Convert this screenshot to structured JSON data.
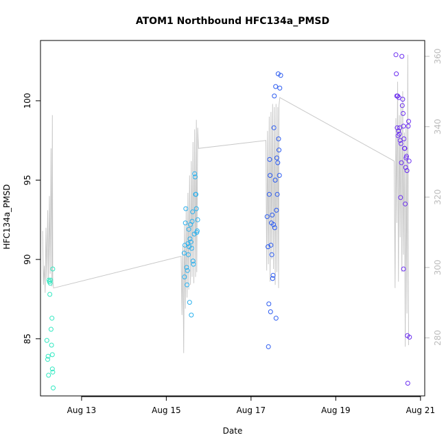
{
  "chart_data": {
    "type": "scatter",
    "title": "ATOM1 Northbound HFC134a_PMSD",
    "xlabel": "Date",
    "ylabel": "HFC134a_PMSD",
    "x_ticks": [
      "Aug 13",
      "Aug 15",
      "Aug 17",
      "Aug 19",
      "Aug 21"
    ],
    "xlim_days": [
      12.03,
      21.1
    ],
    "x_tick_days": [
      13,
      15,
      17,
      19,
      21
    ],
    "y_ticks": [
      85,
      90,
      95,
      100
    ],
    "ylim": [
      81.4,
      103.8
    ],
    "y2_ticks": [
      280,
      300,
      320,
      340,
      360
    ],
    "y2lim": [
      263.5,
      364.5
    ],
    "grid": false,
    "legend": "none",
    "colors": {
      "line": "#c8c8c8",
      "aug12": "#2ee8c0",
      "aug15": "#28b0ee",
      "aug17": "#2a5af0",
      "aug20": "#6a2cf0"
    },
    "points": [
      {
        "group": "aug12",
        "values": [
          [
            12.18,
            84.9
          ],
          [
            12.2,
            83.7
          ],
          [
            12.21,
            83.9
          ],
          [
            12.22,
            82.7
          ],
          [
            12.23,
            88.7
          ],
          [
            12.24,
            88.6
          ],
          [
            12.25,
            87.8
          ],
          [
            12.26,
            88.5
          ],
          [
            12.27,
            88.7
          ],
          [
            12.28,
            85.6
          ],
          [
            12.29,
            84.6
          ],
          [
            12.3,
            86.3
          ],
          [
            12.31,
            84.0
          ],
          [
            12.31,
            83.1
          ],
          [
            12.32,
            89.4
          ],
          [
            12.32,
            82.9
          ],
          [
            12.33,
            81.9
          ]
        ]
      },
      {
        "group": "aug15",
        "values": [
          [
            15.42,
            90.4
          ],
          [
            15.43,
            88.9
          ],
          [
            15.44,
            90.9
          ],
          [
            15.45,
            92.3
          ],
          [
            15.46,
            93.2
          ],
          [
            15.48,
            89.5
          ],
          [
            15.49,
            88.4
          ],
          [
            15.5,
            89.3
          ],
          [
            15.51,
            91.0
          ],
          [
            15.52,
            90.3
          ],
          [
            15.53,
            91.9
          ],
          [
            15.54,
            90.8
          ],
          [
            15.55,
            87.3
          ],
          [
            15.56,
            91.3
          ],
          [
            15.57,
            92.2
          ],
          [
            15.58,
            91.1
          ],
          [
            15.59,
            86.5
          ],
          [
            15.6,
            90.7
          ],
          [
            15.61,
            92.4
          ],
          [
            15.62,
            93.0
          ],
          [
            15.63,
            89.9
          ],
          [
            15.64,
            89.7
          ],
          [
            15.66,
            91.6
          ],
          [
            15.67,
            95.4
          ],
          [
            15.68,
            95.2
          ],
          [
            15.69,
            94.1
          ],
          [
            15.7,
            94.1
          ],
          [
            15.71,
            93.2
          ],
          [
            15.72,
            91.7
          ],
          [
            15.73,
            91.8
          ],
          [
            15.74,
            92.5
          ]
        ]
      },
      {
        "group": "aug17",
        "values": [
          [
            17.38,
            92.7
          ],
          [
            17.4,
            90.8
          ],
          [
            17.41,
            84.5
          ],
          [
            17.42,
            87.2
          ],
          [
            17.43,
            94.1
          ],
          [
            17.44,
            96.3
          ],
          [
            17.45,
            95.3
          ],
          [
            17.46,
            86.7
          ],
          [
            17.47,
            90.9
          ],
          [
            17.48,
            92.3
          ],
          [
            17.49,
            90.3
          ],
          [
            17.5,
            92.8
          ],
          [
            17.51,
            88.8
          ],
          [
            17.52,
            89.0
          ],
          [
            17.53,
            92.2
          ],
          [
            17.54,
            98.3
          ],
          [
            17.55,
            100.3
          ],
          [
            17.56,
            92.0
          ],
          [
            17.57,
            95.0
          ],
          [
            17.58,
            100.9
          ],
          [
            17.59,
            86.3
          ],
          [
            17.6,
            93.1
          ],
          [
            17.61,
            96.4
          ],
          [
            17.62,
            94.1
          ],
          [
            17.63,
            96.1
          ],
          [
            17.64,
            101.7
          ],
          [
            17.65,
            97.6
          ],
          [
            17.66,
            96.9
          ],
          [
            17.67,
            95.3
          ],
          [
            17.68,
            100.8
          ],
          [
            17.7,
            101.6
          ]
        ]
      },
      {
        "group": "aug20",
        "values": [
          [
            20.42,
            102.9
          ],
          [
            20.43,
            101.7
          ],
          [
            20.44,
            100.3
          ],
          [
            20.45,
            98.3
          ],
          [
            20.46,
            100.3
          ],
          [
            20.47,
            97.8
          ],
          [
            20.48,
            98.1
          ],
          [
            20.49,
            100.2
          ],
          [
            20.5,
            97.9
          ],
          [
            20.51,
            98.3
          ],
          [
            20.52,
            97.5
          ],
          [
            20.53,
            93.9
          ],
          [
            20.54,
            97.3
          ],
          [
            20.55,
            96.1
          ],
          [
            20.56,
            102.8
          ],
          [
            20.57,
            99.7
          ],
          [
            20.58,
            100.1
          ],
          [
            20.59,
            99.2
          ],
          [
            20.6,
            98.4
          ],
          [
            20.6,
            89.4
          ],
          [
            20.61,
            97.6
          ],
          [
            20.62,
            97.0
          ],
          [
            20.63,
            97.0
          ],
          [
            20.64,
            93.5
          ],
          [
            20.65,
            95.8
          ],
          [
            20.66,
            96.4
          ],
          [
            20.67,
            96.5
          ],
          [
            20.68,
            95.6
          ],
          [
            20.69,
            85.2
          ],
          [
            20.7,
            82.2
          ],
          [
            20.71,
            98.4
          ],
          [
            20.72,
            98.7
          ],
          [
            20.73,
            96.2
          ],
          [
            20.74,
            85.1
          ]
        ]
      }
    ],
    "line": [
      [
        12.08,
        91.8
      ],
      [
        12.1,
        88.4
      ],
      [
        12.12,
        89.6
      ],
      [
        12.14,
        87.9
      ],
      [
        12.16,
        92.0
      ],
      [
        12.18,
        88.8
      ],
      [
        12.2,
        93.1
      ],
      [
        12.22,
        88.5
      ],
      [
        12.24,
        94.0
      ],
      [
        12.26,
        89.1
      ],
      [
        12.28,
        97.0
      ],
      [
        12.3,
        88.3
      ],
      [
        12.31,
        99.1
      ],
      [
        12.32,
        88.7
      ],
      [
        12.34,
        88.2
      ],
      [
        15.35,
        90.2
      ],
      [
        15.37,
        86.5
      ],
      [
        15.39,
        90.9
      ],
      [
        15.41,
        84.1
      ],
      [
        15.43,
        92.2
      ],
      [
        15.45,
        86.9
      ],
      [
        15.47,
        93.3
      ],
      [
        15.49,
        87.6
      ],
      [
        15.51,
        94.2
      ],
      [
        15.53,
        88.1
      ],
      [
        15.55,
        95.3
      ],
      [
        15.57,
        88.4
      ],
      [
        15.59,
        96.2
      ],
      [
        15.61,
        88.9
      ],
      [
        15.63,
        97.4
      ],
      [
        15.65,
        88.5
      ],
      [
        15.67,
        98.2
      ],
      [
        15.69,
        88.9
      ],
      [
        15.71,
        98.8
      ],
      [
        15.72,
        89.2
      ],
      [
        15.74,
        98.3
      ],
      [
        15.76,
        97.0
      ],
      [
        17.35,
        97.5
      ],
      [
        17.37,
        89.3
      ],
      [
        17.39,
        98.1
      ],
      [
        17.41,
        89.7
      ],
      [
        17.43,
        99.0
      ],
      [
        17.45,
        88.6
      ],
      [
        17.47,
        99.3
      ],
      [
        17.49,
        90.0
      ],
      [
        17.51,
        99.8
      ],
      [
        17.53,
        89.4
      ],
      [
        17.55,
        99.6
      ],
      [
        17.57,
        88.4
      ],
      [
        17.59,
        99.8
      ],
      [
        17.61,
        89.2
      ],
      [
        17.63,
        99.6
      ],
      [
        17.65,
        88.2
      ],
      [
        17.66,
        99.7
      ],
      [
        17.68,
        100.2
      ],
      [
        20.38,
        96.2
      ],
      [
        20.4,
        88.2
      ],
      [
        20.42,
        98.9
      ],
      [
        20.44,
        92.3
      ],
      [
        20.46,
        101.2
      ],
      [
        20.48,
        88.6
      ],
      [
        20.5,
        99.1
      ],
      [
        20.52,
        91.4
      ],
      [
        20.54,
        99.8
      ],
      [
        20.56,
        89.2
      ],
      [
        20.58,
        100.6
      ],
      [
        20.6,
        90.3
      ],
      [
        20.62,
        98.0
      ],
      [
        20.64,
        84.5
      ],
      [
        20.66,
        98.3
      ],
      [
        20.68,
        86.6
      ],
      [
        20.7,
        102.9
      ],
      [
        20.72,
        84.6
      ]
    ]
  }
}
